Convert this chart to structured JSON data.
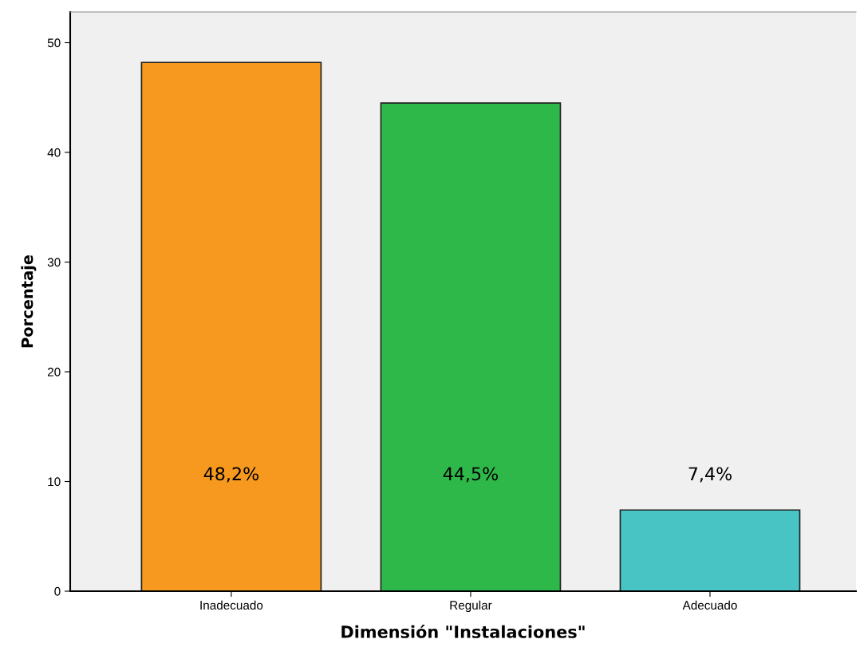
{
  "chart_data": {
    "type": "bar",
    "xlabel": "Dimensión \"Instalaciones\"",
    "ylabel": "Porcentaje",
    "categories": [
      "Inadecuado",
      "Regular",
      "Adecuado"
    ],
    "values": [
      48.2,
      44.5,
      7.4
    ],
    "colors": [
      "#f7991e",
      "#2fb84a",
      "#48c4c4"
    ],
    "value_labels": [
      "48,2%",
      "44,5%",
      "7,4%"
    ],
    "ylim": [
      0,
      52.8
    ],
    "yticks": [
      0,
      10,
      20,
      30,
      40,
      50
    ],
    "grid": false,
    "legend": false
  }
}
